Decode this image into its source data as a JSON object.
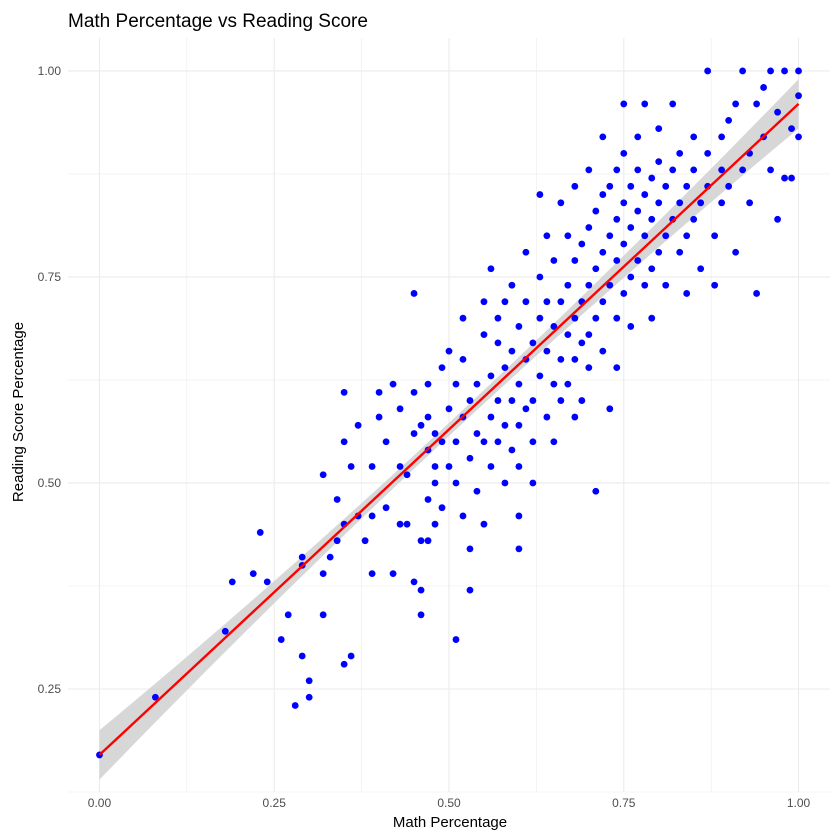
{
  "chart_data": {
    "type": "scatter",
    "title": "Math Percentage vs Reading Score",
    "xlabel": "Math Percentage",
    "ylabel": "Reading Score Percentage",
    "xlim": [
      -0.045,
      1.045
    ],
    "ylim": [
      0.125,
      1.04
    ],
    "x_ticks": [
      0.0,
      0.25,
      0.5,
      0.75,
      1.0
    ],
    "x_tick_labels": [
      "0.00",
      "0.25",
      "0.50",
      "0.75",
      "1.00"
    ],
    "y_ticks": [
      0.25,
      0.5,
      0.75,
      1.0
    ],
    "y_tick_labels": [
      "0.25",
      "0.50",
      "0.75",
      "1.00"
    ],
    "grid": true,
    "colors": {
      "points": "#0000ff",
      "fit_line": "#ff0000",
      "confidence_band": "#d3d3d3",
      "grid": "#ebebeb"
    },
    "fit": {
      "intercept": 0.17,
      "slope": 0.79,
      "band_halfwidth_edge": 0.03,
      "band_halfwidth_center": 0.008
    },
    "points": [
      [
        0.0,
        0.17
      ],
      [
        0.08,
        0.24
      ],
      [
        0.18,
        0.32
      ],
      [
        0.19,
        0.38
      ],
      [
        0.22,
        0.39
      ],
      [
        0.23,
        0.44
      ],
      [
        0.24,
        0.38
      ],
      [
        0.26,
        0.31
      ],
      [
        0.27,
        0.34
      ],
      [
        0.28,
        0.23
      ],
      [
        0.29,
        0.4
      ],
      [
        0.29,
        0.41
      ],
      [
        0.29,
        0.29
      ],
      [
        0.3,
        0.26
      ],
      [
        0.3,
        0.24
      ],
      [
        0.32,
        0.34
      ],
      [
        0.32,
        0.39
      ],
      [
        0.32,
        0.51
      ],
      [
        0.33,
        0.41
      ],
      [
        0.34,
        0.43
      ],
      [
        0.34,
        0.48
      ],
      [
        0.35,
        0.28
      ],
      [
        0.36,
        0.29
      ],
      [
        0.35,
        0.45
      ],
      [
        0.35,
        0.55
      ],
      [
        0.35,
        0.61
      ],
      [
        0.36,
        0.52
      ],
      [
        0.37,
        0.46
      ],
      [
        0.37,
        0.57
      ],
      [
        0.38,
        0.43
      ],
      [
        0.39,
        0.39
      ],
      [
        0.39,
        0.46
      ],
      [
        0.39,
        0.52
      ],
      [
        0.4,
        0.61
      ],
      [
        0.4,
        0.58
      ],
      [
        0.41,
        0.55
      ],
      [
        0.41,
        0.47
      ],
      [
        0.42,
        0.39
      ],
      [
        0.42,
        0.62
      ],
      [
        0.43,
        0.45
      ],
      [
        0.43,
        0.52
      ],
      [
        0.43,
        0.59
      ],
      [
        0.44,
        0.51
      ],
      [
        0.44,
        0.45
      ],
      [
        0.45,
        0.56
      ],
      [
        0.45,
        0.73
      ],
      [
        0.45,
        0.61
      ],
      [
        0.45,
        0.38
      ],
      [
        0.46,
        0.57
      ],
      [
        0.46,
        0.43
      ],
      [
        0.46,
        0.37
      ],
      [
        0.46,
        0.34
      ],
      [
        0.47,
        0.54
      ],
      [
        0.47,
        0.58
      ],
      [
        0.47,
        0.48
      ],
      [
        0.47,
        0.43
      ],
      [
        0.47,
        0.62
      ],
      [
        0.48,
        0.56
      ],
      [
        0.48,
        0.52
      ],
      [
        0.48,
        0.5
      ],
      [
        0.48,
        0.45
      ],
      [
        0.49,
        0.64
      ],
      [
        0.49,
        0.55
      ],
      [
        0.49,
        0.47
      ],
      [
        0.5,
        0.59
      ],
      [
        0.5,
        0.66
      ],
      [
        0.5,
        0.52
      ],
      [
        0.51,
        0.31
      ],
      [
        0.51,
        0.55
      ],
      [
        0.51,
        0.62
      ],
      [
        0.51,
        0.5
      ],
      [
        0.52,
        0.58
      ],
      [
        0.52,
        0.46
      ],
      [
        0.52,
        0.7
      ],
      [
        0.52,
        0.65
      ],
      [
        0.53,
        0.53
      ],
      [
        0.53,
        0.37
      ],
      [
        0.53,
        0.42
      ],
      [
        0.53,
        0.6
      ],
      [
        0.54,
        0.56
      ],
      [
        0.54,
        0.62
      ],
      [
        0.54,
        0.49
      ],
      [
        0.55,
        0.55
      ],
      [
        0.55,
        0.68
      ],
      [
        0.55,
        0.72
      ],
      [
        0.55,
        0.45
      ],
      [
        0.56,
        0.58
      ],
      [
        0.56,
        0.63
      ],
      [
        0.56,
        0.52
      ],
      [
        0.56,
        0.76
      ],
      [
        0.57,
        0.6
      ],
      [
        0.57,
        0.67
      ],
      [
        0.57,
        0.55
      ],
      [
        0.57,
        0.7
      ],
      [
        0.58,
        0.57
      ],
      [
        0.58,
        0.64
      ],
      [
        0.58,
        0.72
      ],
      [
        0.58,
        0.5
      ],
      [
        0.59,
        0.6
      ],
      [
        0.59,
        0.66
      ],
      [
        0.59,
        0.74
      ],
      [
        0.59,
        0.54
      ],
      [
        0.6,
        0.62
      ],
      [
        0.6,
        0.69
      ],
      [
        0.6,
        0.57
      ],
      [
        0.6,
        0.52
      ],
      [
        0.6,
        0.42
      ],
      [
        0.6,
        0.46
      ],
      [
        0.61,
        0.59
      ],
      [
        0.61,
        0.65
      ],
      [
        0.61,
        0.72
      ],
      [
        0.61,
        0.78
      ],
      [
        0.62,
        0.6
      ],
      [
        0.62,
        0.67
      ],
      [
        0.62,
        0.55
      ],
      [
        0.62,
        0.5
      ],
      [
        0.63,
        0.63
      ],
      [
        0.63,
        0.7
      ],
      [
        0.63,
        0.75
      ],
      [
        0.63,
        0.85
      ],
      [
        0.64,
        0.58
      ],
      [
        0.64,
        0.66
      ],
      [
        0.64,
        0.72
      ],
      [
        0.64,
        0.8
      ],
      [
        0.65,
        0.62
      ],
      [
        0.65,
        0.69
      ],
      [
        0.65,
        0.55
      ],
      [
        0.65,
        0.77
      ],
      [
        0.66,
        0.65
      ],
      [
        0.66,
        0.72
      ],
      [
        0.66,
        0.6
      ],
      [
        0.66,
        0.84
      ],
      [
        0.67,
        0.68
      ],
      [
        0.67,
        0.74
      ],
      [
        0.67,
        0.62
      ],
      [
        0.67,
        0.8
      ],
      [
        0.68,
        0.7
      ],
      [
        0.68,
        0.77
      ],
      [
        0.68,
        0.65
      ],
      [
        0.68,
        0.58
      ],
      [
        0.68,
        0.86
      ],
      [
        0.69,
        0.72
      ],
      [
        0.69,
        0.79
      ],
      [
        0.69,
        0.67
      ],
      [
        0.69,
        0.6
      ],
      [
        0.7,
        0.74
      ],
      [
        0.7,
        0.81
      ],
      [
        0.7,
        0.68
      ],
      [
        0.7,
        0.64
      ],
      [
        0.7,
        0.88
      ],
      [
        0.71,
        0.76
      ],
      [
        0.71,
        0.83
      ],
      [
        0.71,
        0.7
      ],
      [
        0.71,
        0.49
      ],
      [
        0.72,
        0.78
      ],
      [
        0.72,
        0.85
      ],
      [
        0.72,
        0.72
      ],
      [
        0.72,
        0.66
      ],
      [
        0.72,
        0.92
      ],
      [
        0.73,
        0.8
      ],
      [
        0.73,
        0.86
      ],
      [
        0.73,
        0.74
      ],
      [
        0.73,
        0.59
      ],
      [
        0.74,
        0.82
      ],
      [
        0.74,
        0.88
      ],
      [
        0.74,
        0.77
      ],
      [
        0.74,
        0.7
      ],
      [
        0.74,
        0.64
      ],
      [
        0.75,
        0.84
      ],
      [
        0.75,
        0.9
      ],
      [
        0.75,
        0.79
      ],
      [
        0.75,
        0.73
      ],
      [
        0.75,
        0.96
      ],
      [
        0.76,
        0.86
      ],
      [
        0.76,
        0.81
      ],
      [
        0.76,
        0.75
      ],
      [
        0.76,
        0.69
      ],
      [
        0.77,
        0.88
      ],
      [
        0.77,
        0.83
      ],
      [
        0.77,
        0.77
      ],
      [
        0.77,
        0.92
      ],
      [
        0.78,
        0.85
      ],
      [
        0.78,
        0.8
      ],
      [
        0.78,
        0.74
      ],
      [
        0.78,
        0.96
      ],
      [
        0.79,
        0.87
      ],
      [
        0.79,
        0.82
      ],
      [
        0.79,
        0.76
      ],
      [
        0.79,
        0.7
      ],
      [
        0.8,
        0.89
      ],
      [
        0.8,
        0.84
      ],
      [
        0.8,
        0.78
      ],
      [
        0.8,
        0.93
      ],
      [
        0.81,
        0.86
      ],
      [
        0.81,
        0.8
      ],
      [
        0.81,
        0.74
      ],
      [
        0.82,
        0.88
      ],
      [
        0.82,
        0.82
      ],
      [
        0.82,
        0.96
      ],
      [
        0.83,
        0.84
      ],
      [
        0.83,
        0.78
      ],
      [
        0.83,
        0.9
      ],
      [
        0.84,
        0.86
      ],
      [
        0.84,
        0.8
      ],
      [
        0.84,
        0.73
      ],
      [
        0.85,
        0.88
      ],
      [
        0.85,
        0.82
      ],
      [
        0.85,
        0.92
      ],
      [
        0.86,
        0.84
      ],
      [
        0.86,
        0.76
      ],
      [
        0.87,
        0.9
      ],
      [
        0.87,
        0.86
      ],
      [
        0.87,
        1.0
      ],
      [
        0.88,
        0.8
      ],
      [
        0.88,
        0.74
      ],
      [
        0.89,
        0.92
      ],
      [
        0.89,
        0.88
      ],
      [
        0.89,
        0.84
      ],
      [
        0.9,
        0.94
      ],
      [
        0.9,
        0.86
      ],
      [
        0.91,
        0.96
      ],
      [
        0.91,
        0.78
      ],
      [
        0.92,
        0.88
      ],
      [
        0.92,
        1.0
      ],
      [
        0.93,
        0.9
      ],
      [
        0.93,
        0.84
      ],
      [
        0.94,
        0.96
      ],
      [
        0.94,
        0.73
      ],
      [
        0.95,
        0.92
      ],
      [
        0.95,
        0.98
      ],
      [
        0.96,
        0.88
      ],
      [
        0.96,
        1.0
      ],
      [
        0.97,
        0.82
      ],
      [
        0.97,
        0.95
      ],
      [
        0.98,
        0.87
      ],
      [
        0.98,
        1.0
      ],
      [
        0.99,
        0.93
      ],
      [
        0.99,
        0.87
      ],
      [
        1.0,
        1.0
      ],
      [
        1.0,
        0.97
      ],
      [
        1.0,
        0.92
      ]
    ]
  }
}
